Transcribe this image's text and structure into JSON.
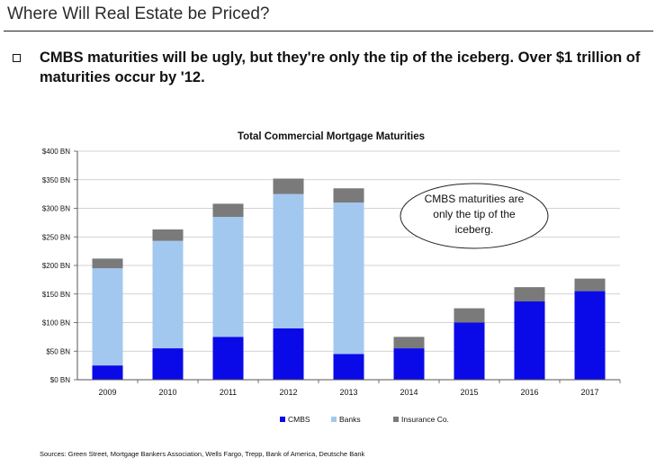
{
  "header": {
    "title": "Where Will Real Estate be Priced?"
  },
  "bullet": {
    "text": "CMBS maturities will be ugly, but they're only the tip of the iceberg. Over $1 trillion of maturities occur by '12."
  },
  "footer": {
    "sources": "Sources: Green Street, Mortgage Bankers Association, Wells Fargo, Trepp, Bank of America, Deutsche Bank"
  },
  "colors": {
    "cmbs": "#0a0ae8",
    "banks": "#a3c8f0",
    "insurance": "#7a7a7a"
  },
  "chart_data": {
    "type": "bar",
    "stacked": true,
    "title": "Total Commercial Mortgage Maturities",
    "categories": [
      "2009",
      "2010",
      "2011",
      "2012",
      "2013",
      "2014",
      "2015",
      "2016",
      "2017"
    ],
    "series": [
      {
        "name": "CMBS",
        "values": [
          25,
          55,
          75,
          90,
          45,
          55,
          100,
          137,
          155
        ]
      },
      {
        "name": "Banks",
        "values": [
          170,
          188,
          210,
          235,
          265,
          0,
          0,
          0,
          0
        ]
      },
      {
        "name": "Insurance Co.",
        "values": [
          17,
          20,
          23,
          27,
          25,
          20,
          25,
          25,
          22
        ]
      }
    ],
    "ylim": [
      0,
      400
    ],
    "yticks": [
      "$0 BN",
      "$50 BN",
      "$100 BN",
      "$150 BN",
      "$200 BN",
      "$250 BN",
      "$300 BN",
      "$350 BN",
      "$400 BN"
    ],
    "ytick_values": [
      0,
      50,
      100,
      150,
      200,
      250,
      300,
      350,
      400
    ],
    "grid": true,
    "legend": "bottom",
    "annotation": [
      "CMBS maturities are",
      "only the tip of the",
      "iceberg."
    ]
  }
}
